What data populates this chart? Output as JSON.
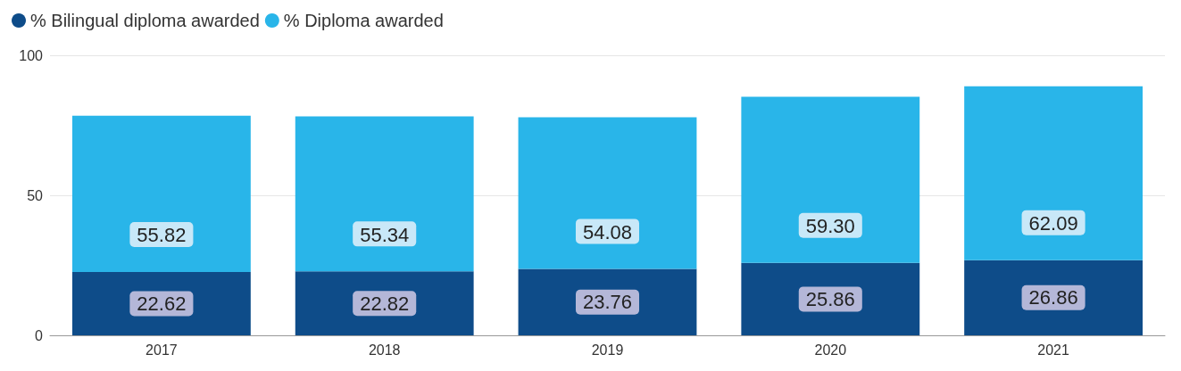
{
  "chart_data": {
    "type": "bar",
    "stacked": true,
    "categories": [
      "2017",
      "2018",
      "2019",
      "2020",
      "2021"
    ],
    "series": [
      {
        "name": "% Bilingual diploma awarded",
        "color": "#0e4c89",
        "values": [
          22.62,
          22.82,
          23.76,
          25.86,
          26.86
        ],
        "value_labels": [
          "22.62",
          "22.82",
          "23.76",
          "25.86",
          "26.86"
        ]
      },
      {
        "name": "% Diploma awarded",
        "color": "#29b5e9",
        "values": [
          55.82,
          55.34,
          54.08,
          59.3,
          62.09
        ],
        "value_labels": [
          "55.82",
          "55.34",
          "54.08",
          "59.30",
          "62.09"
        ]
      }
    ],
    "ylim": [
      0,
      100
    ],
    "yticks": [
      0,
      50,
      100
    ],
    "grid": "y",
    "legend": "top left"
  }
}
